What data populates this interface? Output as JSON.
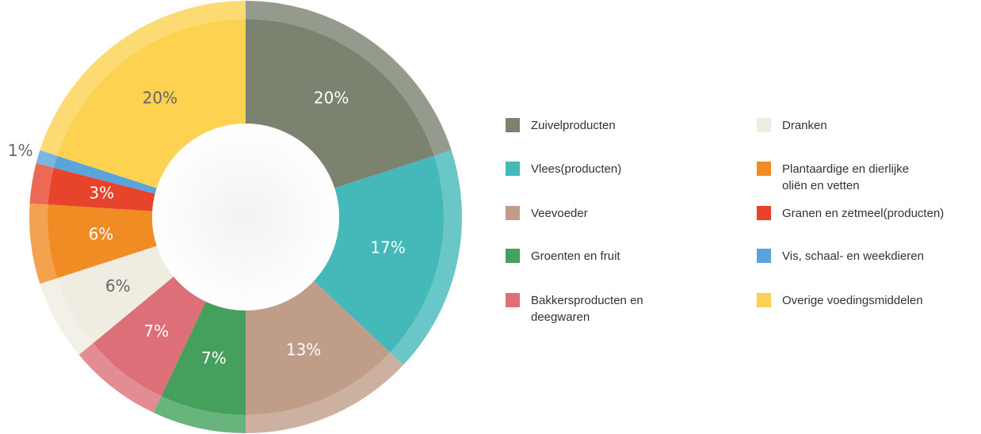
{
  "chart_data": {
    "type": "donut",
    "categories": [
      "Zuivelproducten",
      "Vlees(producten)",
      "Veevoeder",
      "Groenten en fruit",
      "Bakkersproducten en deegwaren",
      "Dranken",
      "Plantaardige en dierlijke oliën en vetten",
      "Granen en zetmeel(producten)",
      "Vis, schaal- en weekdieren",
      "Overige voedingsmiddelen"
    ],
    "values": [
      20,
      17,
      13,
      7,
      7,
      6,
      6,
      3,
      1,
      20
    ],
    "value_labels": [
      "20%",
      "17%",
      "13%",
      "7%",
      "7%",
      "6%",
      "6%",
      "3%",
      "1%",
      "20%"
    ],
    "colors": [
      "#7b826f",
      "#45b9b9",
      "#bf9d89",
      "#44a05c",
      "#dd6f79",
      "#efece1",
      "#f18b23",
      "#e8442c",
      "#5aa4dc",
      "#fdd250"
    ],
    "legend": "right"
  }
}
